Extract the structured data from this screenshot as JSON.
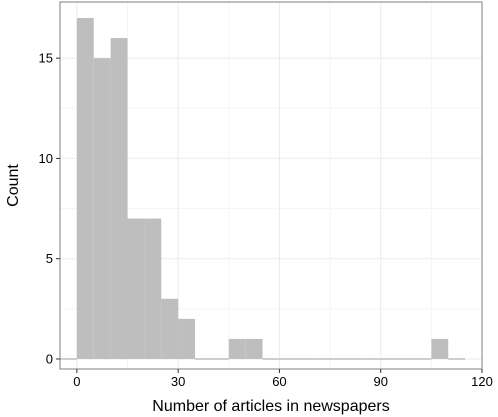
{
  "chart_data": {
    "type": "bar",
    "subtype": "histogram",
    "title": "",
    "xlabel": "Number of articles in newspapers",
    "ylabel": "Count",
    "xlim": [
      -5,
      120
    ],
    "ylim": [
      -0.5,
      17.8
    ],
    "x_ticks": [
      0,
      30,
      60,
      90,
      120
    ],
    "y_ticks": [
      0,
      5,
      10,
      15
    ],
    "grid": true,
    "legend": "none",
    "bin_width": 5,
    "bins": [
      {
        "start": -5,
        "end": 0,
        "count": 0
      },
      {
        "start": 0,
        "end": 5,
        "count": 17
      },
      {
        "start": 5,
        "end": 10,
        "count": 15
      },
      {
        "start": 10,
        "end": 15,
        "count": 16
      },
      {
        "start": 15,
        "end": 20,
        "count": 7
      },
      {
        "start": 20,
        "end": 25,
        "count": 7
      },
      {
        "start": 25,
        "end": 30,
        "count": 3
      },
      {
        "start": 30,
        "end": 35,
        "count": 2
      },
      {
        "start": 35,
        "end": 40,
        "count": 0
      },
      {
        "start": 40,
        "end": 45,
        "count": 0
      },
      {
        "start": 45,
        "end": 50,
        "count": 1
      },
      {
        "start": 50,
        "end": 55,
        "count": 1
      },
      {
        "start": 55,
        "end": 60,
        "count": 0
      },
      {
        "start": 60,
        "end": 65,
        "count": 0
      },
      {
        "start": 65,
        "end": 70,
        "count": 0
      },
      {
        "start": 70,
        "end": 75,
        "count": 0
      },
      {
        "start": 75,
        "end": 80,
        "count": 0
      },
      {
        "start": 80,
        "end": 85,
        "count": 0
      },
      {
        "start": 85,
        "end": 90,
        "count": 0
      },
      {
        "start": 90,
        "end": 95,
        "count": 0
      },
      {
        "start": 95,
        "end": 100,
        "count": 0
      },
      {
        "start": 100,
        "end": 105,
        "count": 0
      },
      {
        "start": 105,
        "end": 110,
        "count": 1
      },
      {
        "start": 110,
        "end": 115,
        "count": 0
      }
    ],
    "colors": {
      "bar_fill": "#bebebe",
      "panel_border": "#7f7f7f",
      "grid_major": "#ebebeb",
      "grid_minor": "#f5f5f5",
      "tick": "#333333"
    }
  }
}
